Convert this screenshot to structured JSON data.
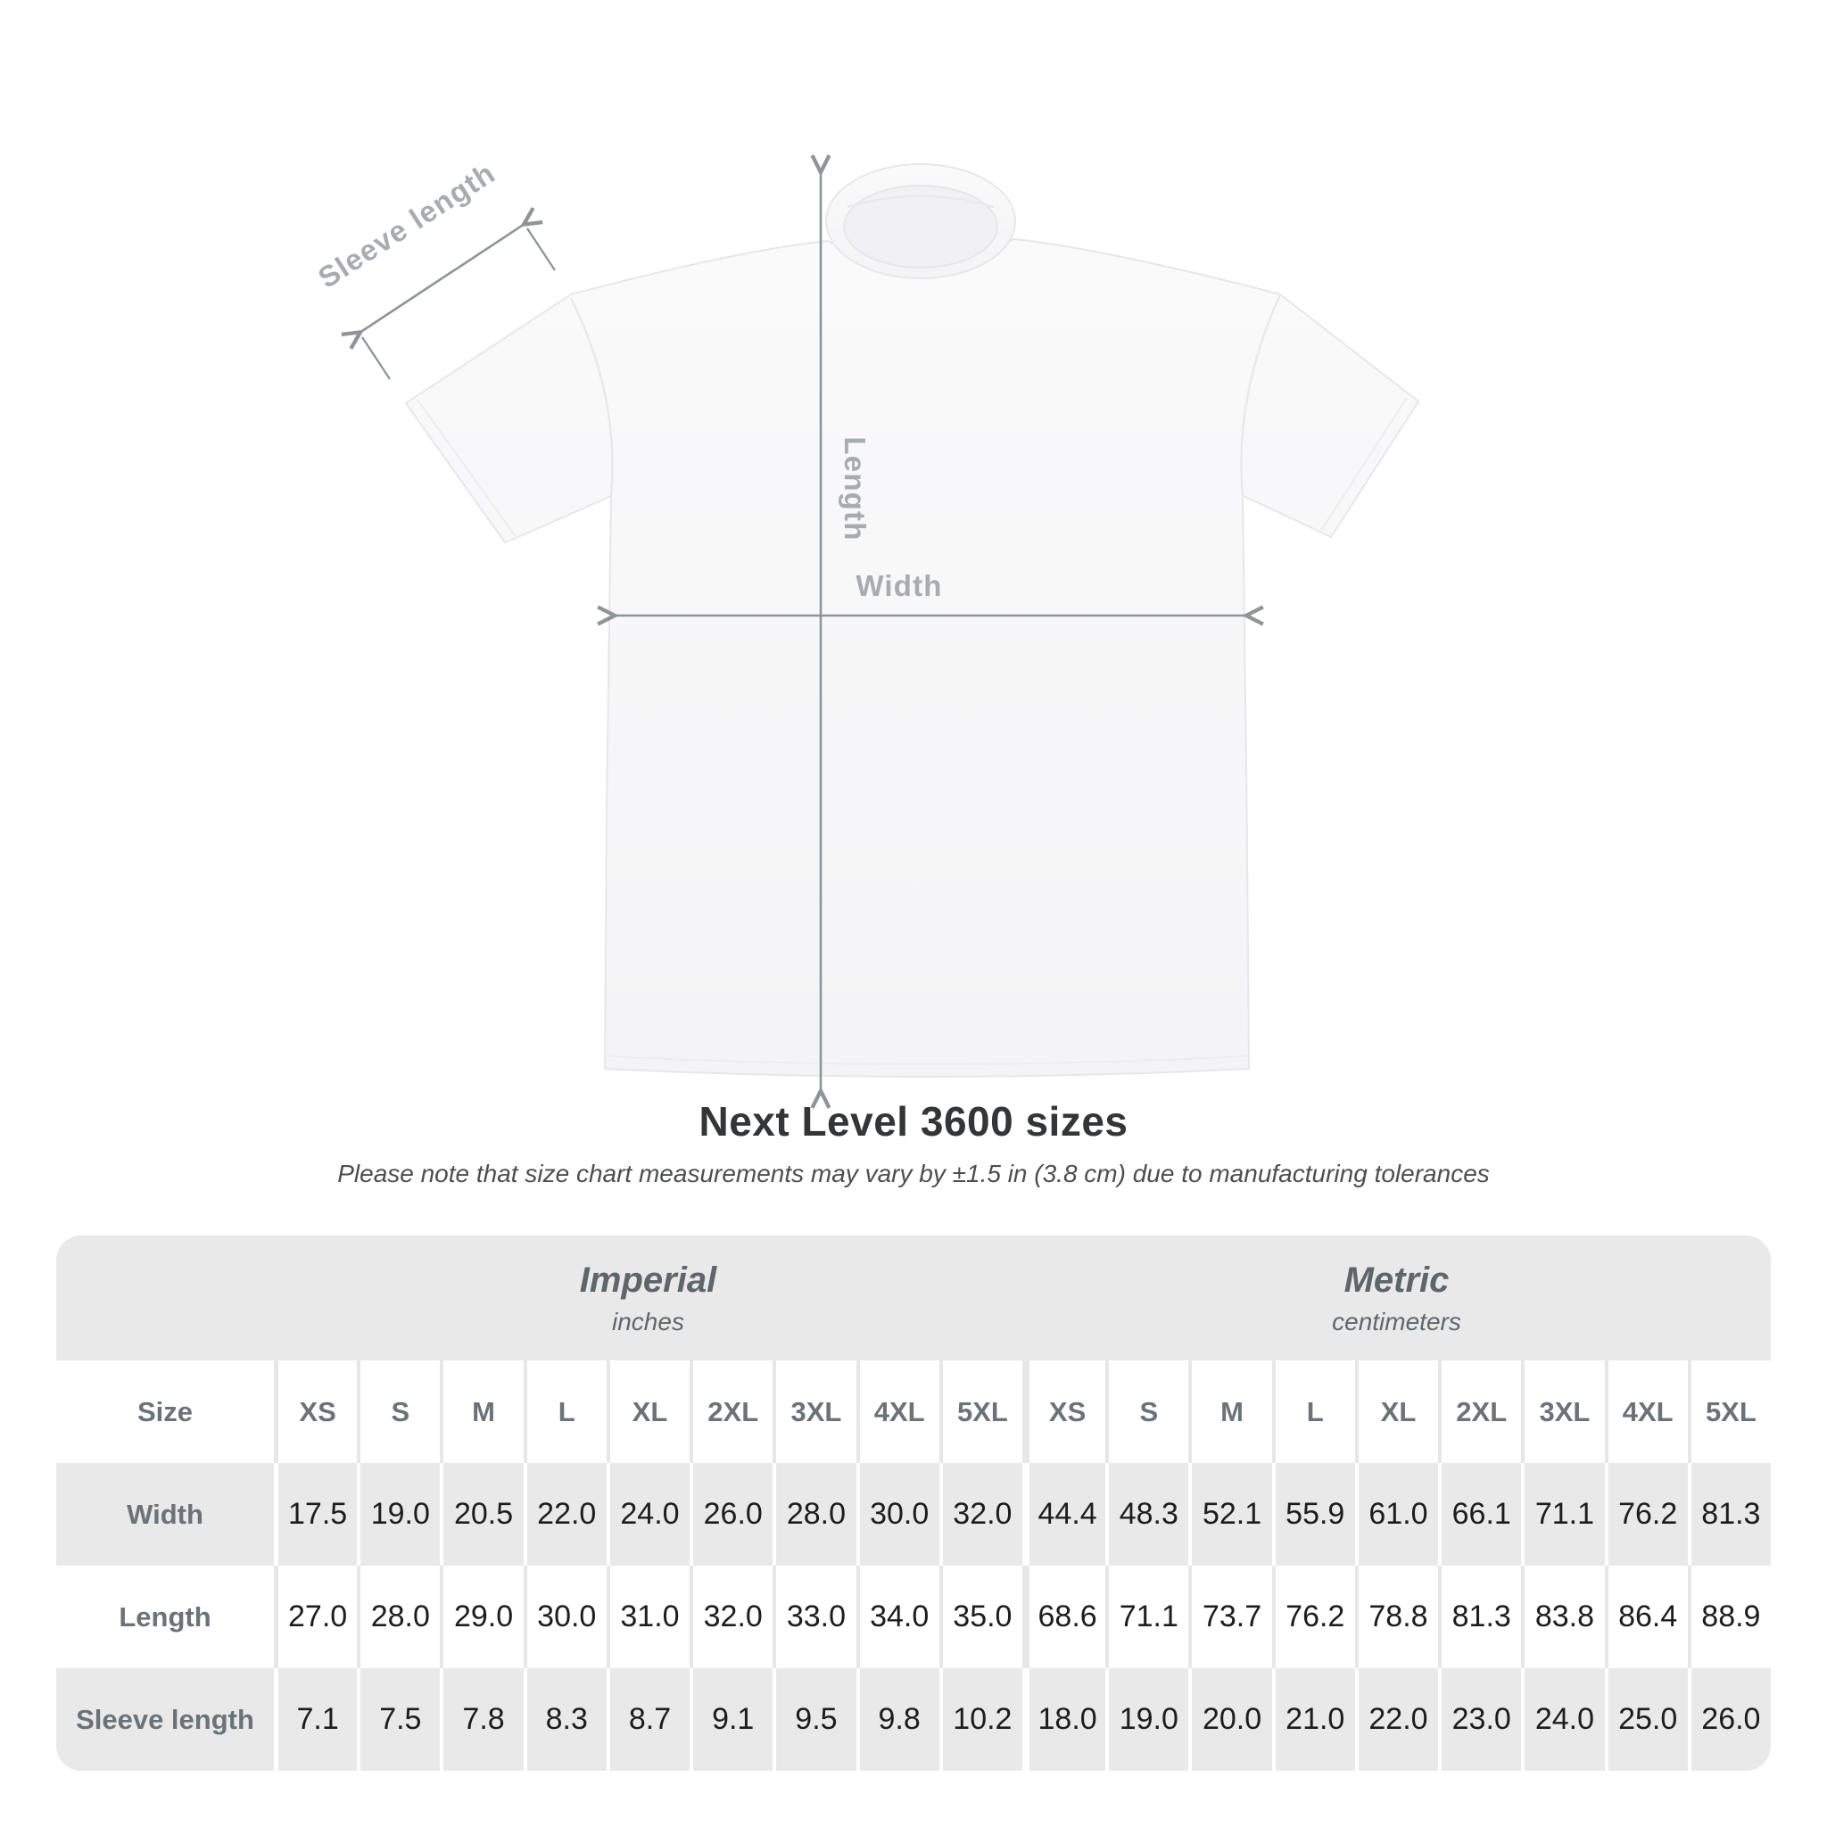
{
  "diagram": {
    "sleeve_length_label": "Sleeve length",
    "length_label": "Length",
    "width_label": "Width",
    "line_color": "#8f9497",
    "label_color": "#a8acae",
    "shirt_color": "#f7f7f8"
  },
  "chart_data": {
    "type": "table",
    "title": "Next Level 3600 sizes",
    "note": "Please note that size chart measurements may vary by ±1.5 in (3.8 cm) due to manufacturing tolerances",
    "row_header": "Size",
    "column_groups": [
      {
        "label": "Imperial",
        "unit": "inches",
        "columns": [
          "XS",
          "S",
          "M",
          "L",
          "XL",
          "2XL",
          "3XL",
          "4XL",
          "5XL"
        ]
      },
      {
        "label": "Metric",
        "unit": "centimeters",
        "columns": [
          "XS",
          "S",
          "M",
          "L",
          "XL",
          "2XL",
          "3XL",
          "4XL",
          "5XL"
        ]
      }
    ],
    "rows": [
      {
        "label": "Width",
        "imperial": [
          17.5,
          19.0,
          20.5,
          22.0,
          24.0,
          26.0,
          28.0,
          30.0,
          32.0
        ],
        "metric": [
          44.4,
          48.3,
          52.1,
          55.9,
          61.0,
          66.1,
          71.1,
          76.2,
          81.3
        ]
      },
      {
        "label": "Length",
        "imperial": [
          27.0,
          28.0,
          29.0,
          30.0,
          31.0,
          32.0,
          33.0,
          34.0,
          35.0
        ],
        "metric": [
          68.6,
          71.1,
          73.7,
          76.2,
          78.8,
          81.3,
          83.8,
          86.4,
          88.9
        ]
      },
      {
        "label": "Sleeve length",
        "imperial": [
          7.1,
          7.5,
          7.8,
          8.3,
          8.7,
          9.1,
          9.5,
          9.8,
          10.2
        ],
        "metric": [
          18.0,
          19.0,
          20.0,
          21.0,
          22.0,
          23.0,
          24.0,
          25.0,
          26.0
        ]
      }
    ],
    "colors": {
      "band_gray": "#e9e9ea",
      "header_text": "#6b7378",
      "value_text": "#1d1d1f"
    }
  }
}
